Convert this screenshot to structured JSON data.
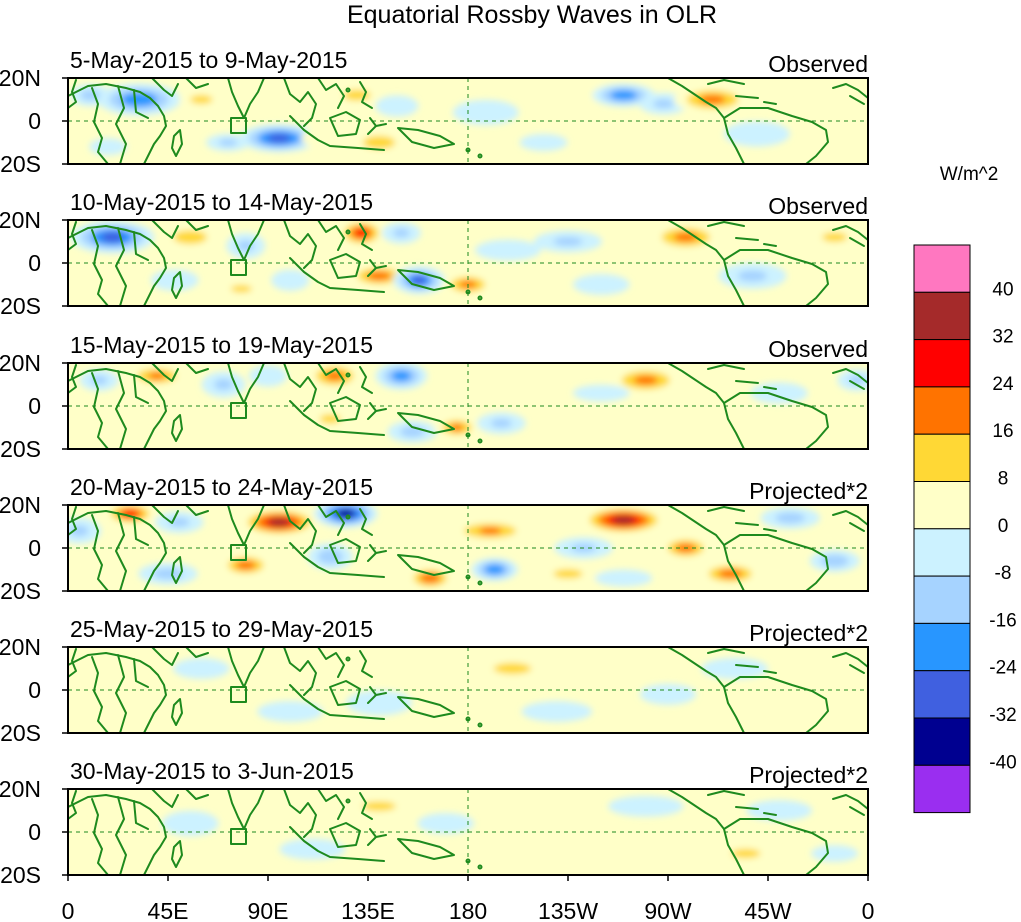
{
  "chart_data": {
    "type": "heatmap",
    "title": "Equatorial Rossby Waves in OLR",
    "units_label": "W/m^2",
    "lat_ticks": [
      "20N",
      "0",
      "20S"
    ],
    "lon_ticks": [
      "0",
      "45E",
      "90E",
      "135E",
      "180",
      "135W",
      "90W",
      "45W",
      "0"
    ],
    "lon_range": [
      0,
      360
    ],
    "lat_range": [
      -20,
      20
    ],
    "colorbar": {
      "levels": [
        40,
        32,
        24,
        16,
        8,
        0,
        -8,
        -16,
        -24,
        -32,
        -40
      ],
      "labels": [
        "40",
        "32",
        "24",
        "16",
        "8",
        "0",
        "-8",
        "-16",
        "-24",
        "-32",
        "-40"
      ],
      "colors": [
        "#ff77c0",
        "#a52a2a",
        "#ff0000",
        "#ff7300",
        "#ffd835",
        "#ffffc8",
        "#ccf2ff",
        "#a6d3ff",
        "#2896ff",
        "#4060e0",
        "#000090",
        "#9a2ef0"
      ]
    },
    "panels": [
      {
        "date_label": "5-May-2015 to 9-May-2015",
        "kind": "Observed",
        "blobs": [
          {
            "lon": 32,
            "lat": 10,
            "v": -26,
            "rx": 16,
            "ry": 7
          },
          {
            "lon": 10,
            "lat": 12,
            "v": -14,
            "rx": 8,
            "ry": 5
          },
          {
            "lon": 18,
            "lat": -12,
            "v": -9,
            "rx": 8,
            "ry": 4
          },
          {
            "lon": 60,
            "lat": 10,
            "v": 14,
            "rx": 9,
            "ry": 4
          },
          {
            "lon": 78,
            "lat": 12,
            "v": 9,
            "rx": 7,
            "ry": 4
          },
          {
            "lon": 95,
            "lat": -8,
            "v": -32,
            "rx": 15,
            "ry": 6
          },
          {
            "lon": 72,
            "lat": -10,
            "v": -12,
            "rx": 9,
            "ry": 4
          },
          {
            "lon": 130,
            "lat": 12,
            "v": 18,
            "rx": 9,
            "ry": 4
          },
          {
            "lon": 140,
            "lat": -10,
            "v": 17,
            "rx": 11,
            "ry": 5
          },
          {
            "lon": 115,
            "lat": -8,
            "v": 11,
            "rx": 9,
            "ry": 5
          },
          {
            "lon": 148,
            "lat": 7,
            "v": -10,
            "rx": 9,
            "ry": 5
          },
          {
            "lon": 188,
            "lat": 4,
            "v": -9,
            "rx": 14,
            "ry": 6
          },
          {
            "lon": 214,
            "lat": -10,
            "v": -10,
            "rx": 10,
            "ry": 4
          },
          {
            "lon": 228,
            "lat": 13,
            "v": 10,
            "rx": 14,
            "ry": 5
          },
          {
            "lon": 250,
            "lat": 12,
            "v": -26,
            "rx": 12,
            "ry": 5
          },
          {
            "lon": 268,
            "lat": 8,
            "v": -12,
            "rx": 10,
            "ry": 5
          },
          {
            "lon": 290,
            "lat": 10,
            "v": 22,
            "rx": 15,
            "ry": 6
          },
          {
            "lon": 310,
            "lat": -6,
            "v": -9,
            "rx": 14,
            "ry": 6
          },
          {
            "lon": 270,
            "lat": -14,
            "v": 9,
            "rx": 12,
            "ry": 4
          },
          {
            "lon": 340,
            "lat": 4,
            "v": 6,
            "rx": 14,
            "ry": 8
          }
        ]
      },
      {
        "date_label": "10-May-2015 to 14-May-2015",
        "kind": "Observed",
        "blobs": [
          {
            "lon": 20,
            "lat": 12,
            "v": -30,
            "rx": 16,
            "ry": 7
          },
          {
            "lon": 55,
            "lat": 12,
            "v": 18,
            "rx": 11,
            "ry": 5
          },
          {
            "lon": 48,
            "lat": -8,
            "v": -10,
            "rx": 10,
            "ry": 5
          },
          {
            "lon": 80,
            "lat": 8,
            "v": -12,
            "rx": 8,
            "ry": 6
          },
          {
            "lon": 78,
            "lat": -12,
            "v": 12,
            "rx": 10,
            "ry": 4
          },
          {
            "lon": 100,
            "lat": -8,
            "v": -10,
            "rx": 8,
            "ry": 5
          },
          {
            "lon": 132,
            "lat": 14,
            "v": 28,
            "rx": 9,
            "ry": 6
          },
          {
            "lon": 140,
            "lat": -6,
            "v": 24,
            "rx": 12,
            "ry": 5
          },
          {
            "lon": 158,
            "lat": -8,
            "v": -28,
            "rx": 10,
            "ry": 6
          },
          {
            "lon": 150,
            "lat": 14,
            "v": -12,
            "rx": 8,
            "ry": 5
          },
          {
            "lon": 180,
            "lat": -10,
            "v": 22,
            "rx": 10,
            "ry": 5
          },
          {
            "lon": 198,
            "lat": 6,
            "v": -9,
            "rx": 14,
            "ry": 5
          },
          {
            "lon": 225,
            "lat": 10,
            "v": -12,
            "rx": 14,
            "ry": 5
          },
          {
            "lon": 255,
            "lat": 12,
            "v": 10,
            "rx": 12,
            "ry": 5
          },
          {
            "lon": 278,
            "lat": 12,
            "v": 22,
            "rx": 14,
            "ry": 6
          },
          {
            "lon": 308,
            "lat": -6,
            "v": -12,
            "rx": 14,
            "ry": 6
          },
          {
            "lon": 240,
            "lat": -10,
            "v": -9,
            "rx": 12,
            "ry": 5
          },
          {
            "lon": 345,
            "lat": 12,
            "v": 12,
            "rx": 12,
            "ry": 5
          }
        ]
      },
      {
        "date_label": "15-May-2015 to 19-May-2015",
        "kind": "Observed",
        "blobs": [
          {
            "lon": 40,
            "lat": 14,
            "v": 20,
            "rx": 12,
            "ry": 5
          },
          {
            "lon": 14,
            "lat": 12,
            "v": -12,
            "rx": 8,
            "ry": 5
          },
          {
            "lon": 70,
            "lat": 10,
            "v": -12,
            "rx": 9,
            "ry": 6
          },
          {
            "lon": 90,
            "lat": 14,
            "v": -10,
            "rx": 8,
            "ry": 5
          },
          {
            "lon": 120,
            "lat": 14,
            "v": 22,
            "rx": 11,
            "ry": 6
          },
          {
            "lon": 150,
            "lat": 14,
            "v": -24,
            "rx": 10,
            "ry": 6
          },
          {
            "lon": 118,
            "lat": -6,
            "v": 12,
            "rx": 10,
            "ry": 5
          },
          {
            "lon": 155,
            "lat": -12,
            "v": -14,
            "rx": 10,
            "ry": 5
          },
          {
            "lon": 175,
            "lat": -10,
            "v": 20,
            "rx": 9,
            "ry": 5
          },
          {
            "lon": 195,
            "lat": -8,
            "v": -12,
            "rx": 10,
            "ry": 5
          },
          {
            "lon": 210,
            "lat": 4,
            "v": 10,
            "rx": 8,
            "ry": 4
          },
          {
            "lon": 260,
            "lat": 12,
            "v": 22,
            "rx": 14,
            "ry": 6
          },
          {
            "lon": 240,
            "lat": 6,
            "v": -9,
            "rx": 12,
            "ry": 4
          },
          {
            "lon": 300,
            "lat": -10,
            "v": 10,
            "rx": 14,
            "ry": 5
          },
          {
            "lon": 320,
            "lat": 6,
            "v": -10,
            "rx": 12,
            "ry": 5
          },
          {
            "lon": 355,
            "lat": 12,
            "v": -12,
            "rx": 8,
            "ry": 5
          }
        ]
      },
      {
        "date_label": "20-May-2015 to 24-May-2015",
        "kind": "Projected*2",
        "blobs": [
          {
            "lon": 28,
            "lat": 16,
            "v": 28,
            "rx": 10,
            "ry": 5
          },
          {
            "lon": 5,
            "lat": 8,
            "v": -12,
            "rx": 9,
            "ry": 6
          },
          {
            "lon": 50,
            "lat": 12,
            "v": -12,
            "rx": 10,
            "ry": 5
          },
          {
            "lon": 45,
            "lat": -12,
            "v": -14,
            "rx": 12,
            "ry": 5
          },
          {
            "lon": 95,
            "lat": 12,
            "v": 36,
            "rx": 15,
            "ry": 6
          },
          {
            "lon": 80,
            "lat": -8,
            "v": 24,
            "rx": 10,
            "ry": 5
          },
          {
            "lon": 125,
            "lat": 16,
            "v": -36,
            "rx": 12,
            "ry": 6
          },
          {
            "lon": 118,
            "lat": -4,
            "v": -16,
            "rx": 9,
            "ry": 6
          },
          {
            "lon": 150,
            "lat": 2,
            "v": 10,
            "rx": 10,
            "ry": 5
          },
          {
            "lon": 163,
            "lat": -14,
            "v": 26,
            "rx": 9,
            "ry": 5
          },
          {
            "lon": 192,
            "lat": -10,
            "v": -26,
            "rx": 9,
            "ry": 5
          },
          {
            "lon": 190,
            "lat": 8,
            "v": 20,
            "rx": 16,
            "ry": 5
          },
          {
            "lon": 232,
            "lat": 0,
            "v": -12,
            "rx": 12,
            "ry": 5
          },
          {
            "lon": 250,
            "lat": 13,
            "v": 38,
            "rx": 16,
            "ry": 6
          },
          {
            "lon": 225,
            "lat": -12,
            "v": 12,
            "rx": 14,
            "ry": 5
          },
          {
            "lon": 278,
            "lat": 0,
            "v": 24,
            "rx": 10,
            "ry": 5
          },
          {
            "lon": 298,
            "lat": -12,
            "v": 24,
            "rx": 12,
            "ry": 5
          },
          {
            "lon": 325,
            "lat": 14,
            "v": -14,
            "rx": 12,
            "ry": 5
          },
          {
            "lon": 345,
            "lat": -6,
            "v": -16,
            "rx": 10,
            "ry": 5
          },
          {
            "lon": 250,
            "lat": -14,
            "v": -10,
            "rx": 12,
            "ry": 4
          }
        ]
      },
      {
        "date_label": "25-May-2015 to 29-May-2015",
        "kind": "Projected*2",
        "blobs": [
          {
            "lon": 20,
            "lat": 12,
            "v": 8,
            "rx": 14,
            "ry": 6
          },
          {
            "lon": 40,
            "lat": -8,
            "v": 10,
            "rx": 14,
            "ry": 5
          },
          {
            "lon": 60,
            "lat": 10,
            "v": -9,
            "rx": 12,
            "ry": 5
          },
          {
            "lon": 95,
            "lat": 8,
            "v": 10,
            "rx": 15,
            "ry": 5
          },
          {
            "lon": 100,
            "lat": -10,
            "v": -9,
            "rx": 14,
            "ry": 5
          },
          {
            "lon": 140,
            "lat": -6,
            "v": -9,
            "rx": 14,
            "ry": 6
          },
          {
            "lon": 160,
            "lat": 8,
            "v": 9,
            "rx": 16,
            "ry": 5
          },
          {
            "lon": 200,
            "lat": 10,
            "v": 12,
            "rx": 18,
            "ry": 6
          },
          {
            "lon": 220,
            "lat": -10,
            "v": -9,
            "rx": 15,
            "ry": 5
          },
          {
            "lon": 245,
            "lat": 10,
            "v": 9,
            "rx": 14,
            "ry": 5
          },
          {
            "lon": 270,
            "lat": -2,
            "v": -9,
            "rx": 12,
            "ry": 5
          },
          {
            "lon": 300,
            "lat": 10,
            "v": -10,
            "rx": 14,
            "ry": 5
          },
          {
            "lon": 330,
            "lat": -8,
            "v": 8,
            "rx": 14,
            "ry": 5
          },
          {
            "lon": 350,
            "lat": 12,
            "v": 8,
            "rx": 10,
            "ry": 5
          }
        ]
      },
      {
        "date_label": "30-May-2015 to 3-Jun-2015",
        "kind": "Projected*2",
        "blobs": [
          {
            "lon": 25,
            "lat": 12,
            "v": 9,
            "rx": 14,
            "ry": 6
          },
          {
            "lon": 55,
            "lat": 4,
            "v": -9,
            "rx": 12,
            "ry": 6
          },
          {
            "lon": 85,
            "lat": 12,
            "v": 9,
            "rx": 12,
            "ry": 5
          },
          {
            "lon": 110,
            "lat": -8,
            "v": -9,
            "rx": 14,
            "ry": 5
          },
          {
            "lon": 140,
            "lat": 12,
            "v": 12,
            "rx": 16,
            "ry": 5
          },
          {
            "lon": 170,
            "lat": 4,
            "v": -9,
            "rx": 12,
            "ry": 5
          },
          {
            "lon": 205,
            "lat": 14,
            "v": 9,
            "rx": 16,
            "ry": 5
          },
          {
            "lon": 230,
            "lat": 2,
            "v": 9,
            "rx": 14,
            "ry": 5
          },
          {
            "lon": 260,
            "lat": 12,
            "v": -9,
            "rx": 16,
            "ry": 5
          },
          {
            "lon": 280,
            "lat": -4,
            "v": 9,
            "rx": 12,
            "ry": 5
          },
          {
            "lon": 305,
            "lat": -10,
            "v": 12,
            "rx": 14,
            "ry": 5
          },
          {
            "lon": 320,
            "lat": 10,
            "v": -9,
            "rx": 14,
            "ry": 5
          },
          {
            "lon": 345,
            "lat": -10,
            "v": -9,
            "rx": 10,
            "ry": 4
          }
        ]
      }
    ]
  }
}
